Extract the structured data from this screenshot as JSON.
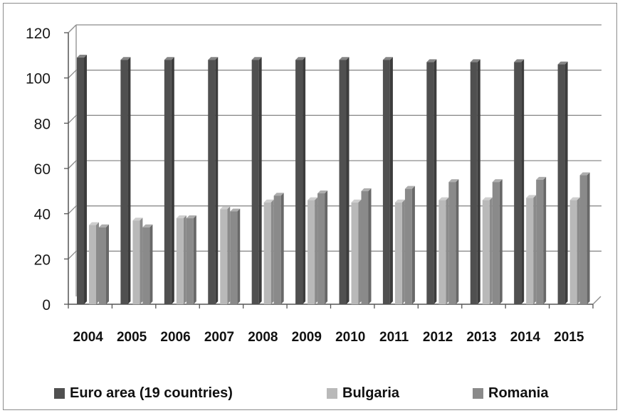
{
  "chart_data": {
    "type": "bar",
    "title": "",
    "xlabel": "",
    "ylabel": "",
    "categories": [
      "2004",
      "2005",
      "2006",
      "2007",
      "2008",
      "2009",
      "2010",
      "2011",
      "2012",
      "2013",
      "2014",
      "2015"
    ],
    "series": [
      {
        "name": "Euro area (19 countries)",
        "color": "#505050",
        "values": [
          109,
          108,
          108,
          108,
          108,
          108,
          108,
          108,
          107,
          107,
          107,
          106
        ]
      },
      {
        "name": "Bulgaria",
        "color": "#b9b9b9",
        "values": [
          35,
          37,
          38,
          42,
          45,
          46,
          45,
          45,
          46,
          46,
          47,
          46
        ]
      },
      {
        "name": "Romania",
        "color": "#8a8a8a",
        "values": [
          34,
          34,
          38,
          41,
          48,
          49,
          50,
          51,
          54,
          54,
          55,
          57
        ]
      }
    ],
    "ylim": [
      0,
      120
    ],
    "yticks": [
      "0",
      "20",
      "40",
      "60",
      "80",
      "100",
      "120"
    ],
    "grid": true,
    "legend_position": "bottom"
  }
}
